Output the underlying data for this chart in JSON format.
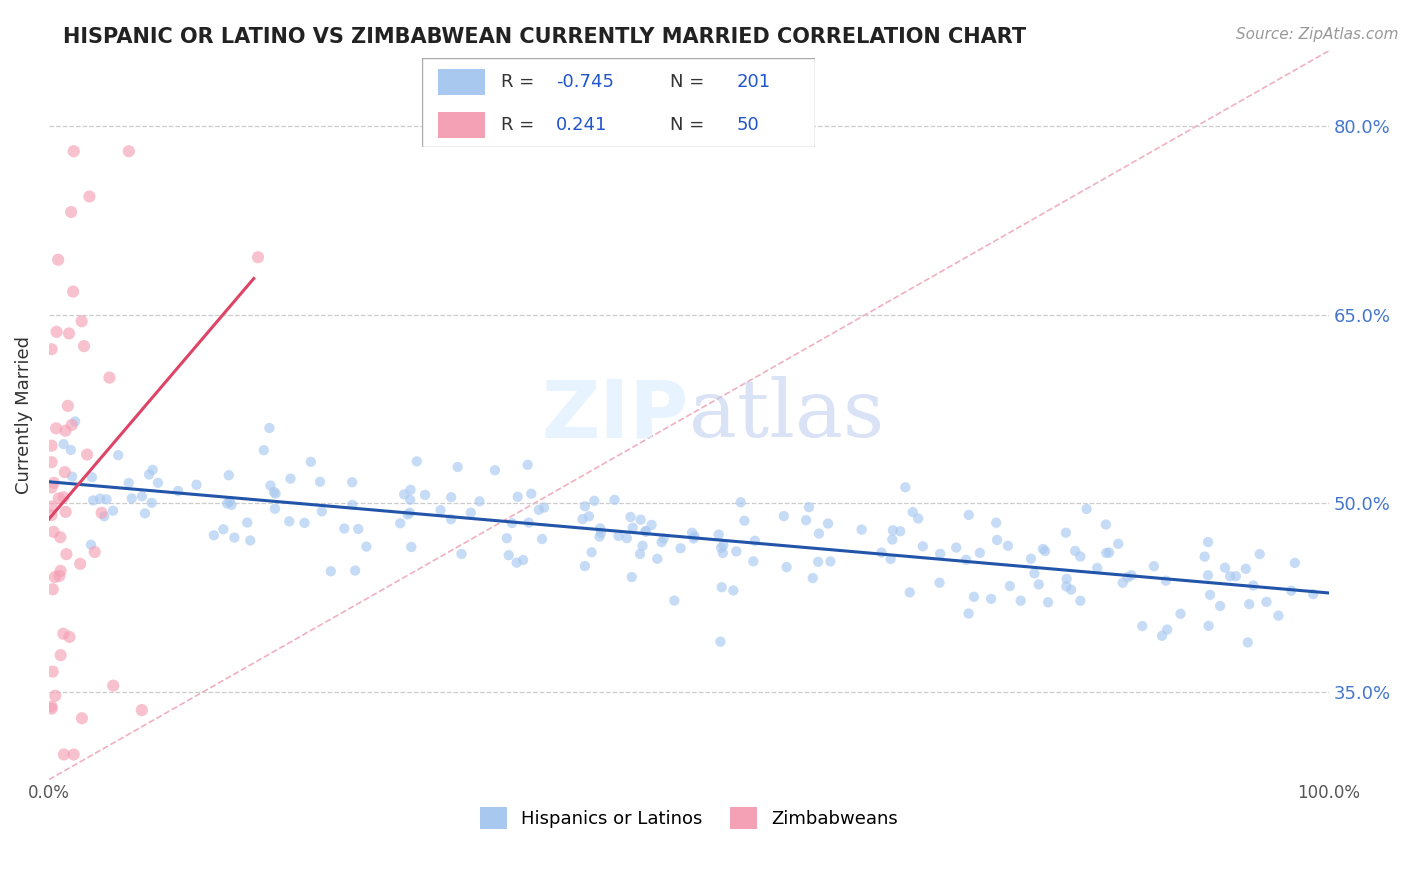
{
  "title": "HISPANIC OR LATINO VS ZIMBABWEAN CURRENTLY MARRIED CORRELATION CHART",
  "source_text": "Source: ZipAtlas.com",
  "ylabel": "Currently Married",
  "y_tick_values": [
    0.35,
    0.5,
    0.65,
    0.8
  ],
  "y_tick_labels": [
    "35.0%",
    "50.0%",
    "65.0%",
    "80.0%"
  ],
  "x_tick_labels": [
    "0.0%",
    "100.0%"
  ],
  "xlim": [
    0.0,
    1.0
  ],
  "ylim": [
    0.28,
    0.86
  ],
  "watermark_zip": "ZIP",
  "watermark_atlas": "atlas",
  "blue_color": "#A8C8F0",
  "pink_color": "#F4A0B5",
  "blue_line_color": "#2255AA",
  "pink_line_color": "#DD4466",
  "diag_color": "#F0B0C0",
  "grid_color": "#CCCCCC",
  "dot_size": 55,
  "dot_alpha": 0.65
}
